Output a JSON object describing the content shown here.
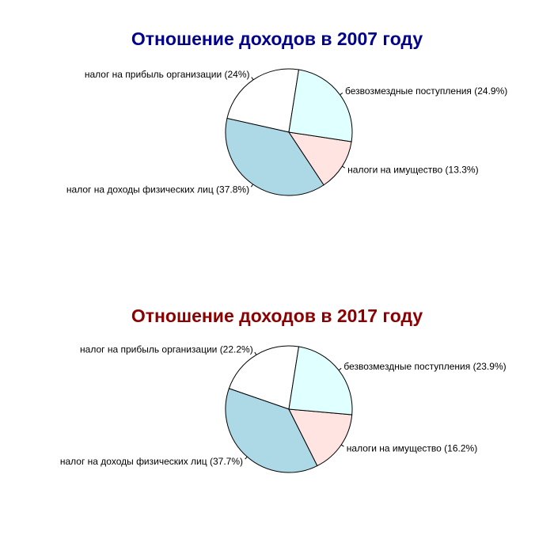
{
  "chart_data": [
    {
      "type": "pie",
      "title": "Отношение доходов в 2007 году",
      "title_color": "#00008b",
      "slices": [
        {
          "label": "налог на прибыль организации (24%)",
          "value": 24.0,
          "color": "#ffffff"
        },
        {
          "label": "налог на доходы физических лиц (37.8%)",
          "value": 37.8,
          "color": "#add8e6"
        },
        {
          "label": "налоги на имущество (13.3%)",
          "value": 13.3,
          "color": "#ffe4e1"
        },
        {
          "label": "безвозмездные поступления (24.9%)",
          "value": 24.9,
          "color": "#e0ffff"
        }
      ]
    },
    {
      "type": "pie",
      "title": "Отношение доходов в 2017 году",
      "title_color": "#8b0000",
      "slices": [
        {
          "label": "налог на прибыль организации (22.2%)",
          "value": 22.2,
          "color": "#ffffff"
        },
        {
          "label": "налог на доходы физических лиц (37.7%)",
          "value": 37.7,
          "color": "#add8e6"
        },
        {
          "label": "налоги на имущество (16.2%)",
          "value": 16.2,
          "color": "#ffe4e1"
        },
        {
          "label": "безвозмездные поступления (23.9%)",
          "value": 23.9,
          "color": "#e0ffff"
        }
      ]
    }
  ]
}
